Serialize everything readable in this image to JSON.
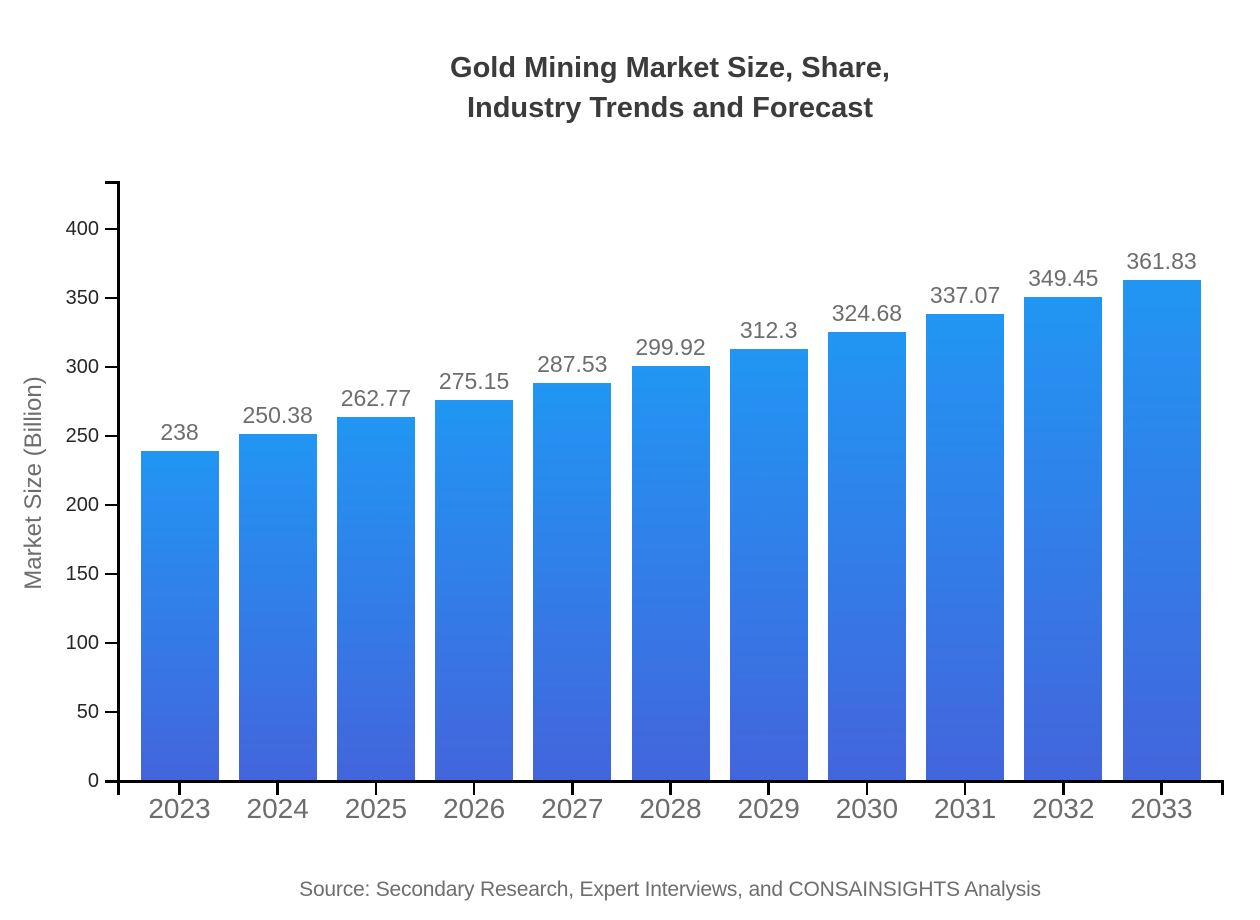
{
  "title": {
    "line1": "Gold Mining Market Size, Share,",
    "line2": "Industry Trends and Forecast"
  },
  "source": "Source: Secondary Research, Expert Interviews, and CONSAINSIGHTS Analysis",
  "colors": {
    "bar_gradient_top": "#2196F3",
    "bar_gradient_bottom": "#4365DC",
    "title_text": "#3b3b3b",
    "label_text": "#6d6d6d",
    "ytick_text": "#262626",
    "axis": "#000000",
    "background": "#ffffff"
  },
  "chart_data": {
    "type": "bar",
    "title": "Gold Mining Market Size, Share, Industry Trends and Forecast",
    "categories": [
      "2023",
      "2024",
      "2025",
      "2026",
      "2027",
      "2028",
      "2029",
      "2030",
      "2031",
      "2032",
      "2033"
    ],
    "values": [
      238,
      250.38,
      262.77,
      275.15,
      287.53,
      299.92,
      312.3,
      324.68,
      337.07,
      349.45,
      361.83
    ],
    "value_labels": [
      "238",
      "250.38",
      "262.77",
      "275.15",
      "287.53",
      "299.92",
      "312.3",
      "324.68",
      "337.07",
      "349.45",
      "361.83"
    ],
    "xlabel": "",
    "ylabel": "Market Size (Billion)",
    "ylim": [
      0,
      434
    ],
    "yticks": [
      0,
      50,
      100,
      150,
      200,
      250,
      300,
      350,
      400
    ],
    "grid": false,
    "legend": "none",
    "bar_gradient": {
      "top": "#2196F3",
      "bottom": "#4365DC"
    }
  }
}
